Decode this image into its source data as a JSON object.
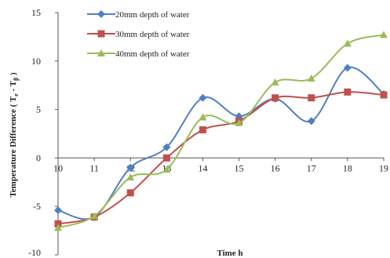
{
  "chart_data": {
    "type": "line",
    "xlabel": "Time h",
    "ylabel": "Temperature Difference ( T",
    "ylabel_sub1": "e",
    "ylabel_mid": " - T",
    "ylabel_sub2": "β",
    "ylabel_end": " )",
    "x": [
      10,
      11,
      12,
      13,
      14,
      15,
      16,
      17,
      18,
      19
    ],
    "xlim": [
      10,
      19
    ],
    "ylim": [
      -10,
      15
    ],
    "yticks": [
      15,
      10,
      5,
      0,
      -5,
      -10
    ],
    "grid": false,
    "legend_position": "top-left",
    "series": [
      {
        "name": "20mm depth of water",
        "color": "#4f7fc2",
        "marker": "diamond",
        "values": [
          -5.4,
          -6.1,
          -1.0,
          1.1,
          6.2,
          4.3,
          6.1,
          3.8,
          9.3,
          6.6
        ]
      },
      {
        "name": "30mm depth of water",
        "color": "#c0504d",
        "marker": "square",
        "values": [
          -6.8,
          -6.1,
          -3.6,
          0.0,
          2.9,
          3.8,
          6.2,
          6.2,
          6.8,
          6.5
        ]
      },
      {
        "name": "40mm depth of water",
        "color": "#9bbb59",
        "marker": "triangle",
        "values": [
          -7.2,
          -6.0,
          -2.0,
          -1.2,
          4.2,
          3.6,
          7.8,
          8.2,
          11.8,
          12.7
        ]
      }
    ]
  }
}
